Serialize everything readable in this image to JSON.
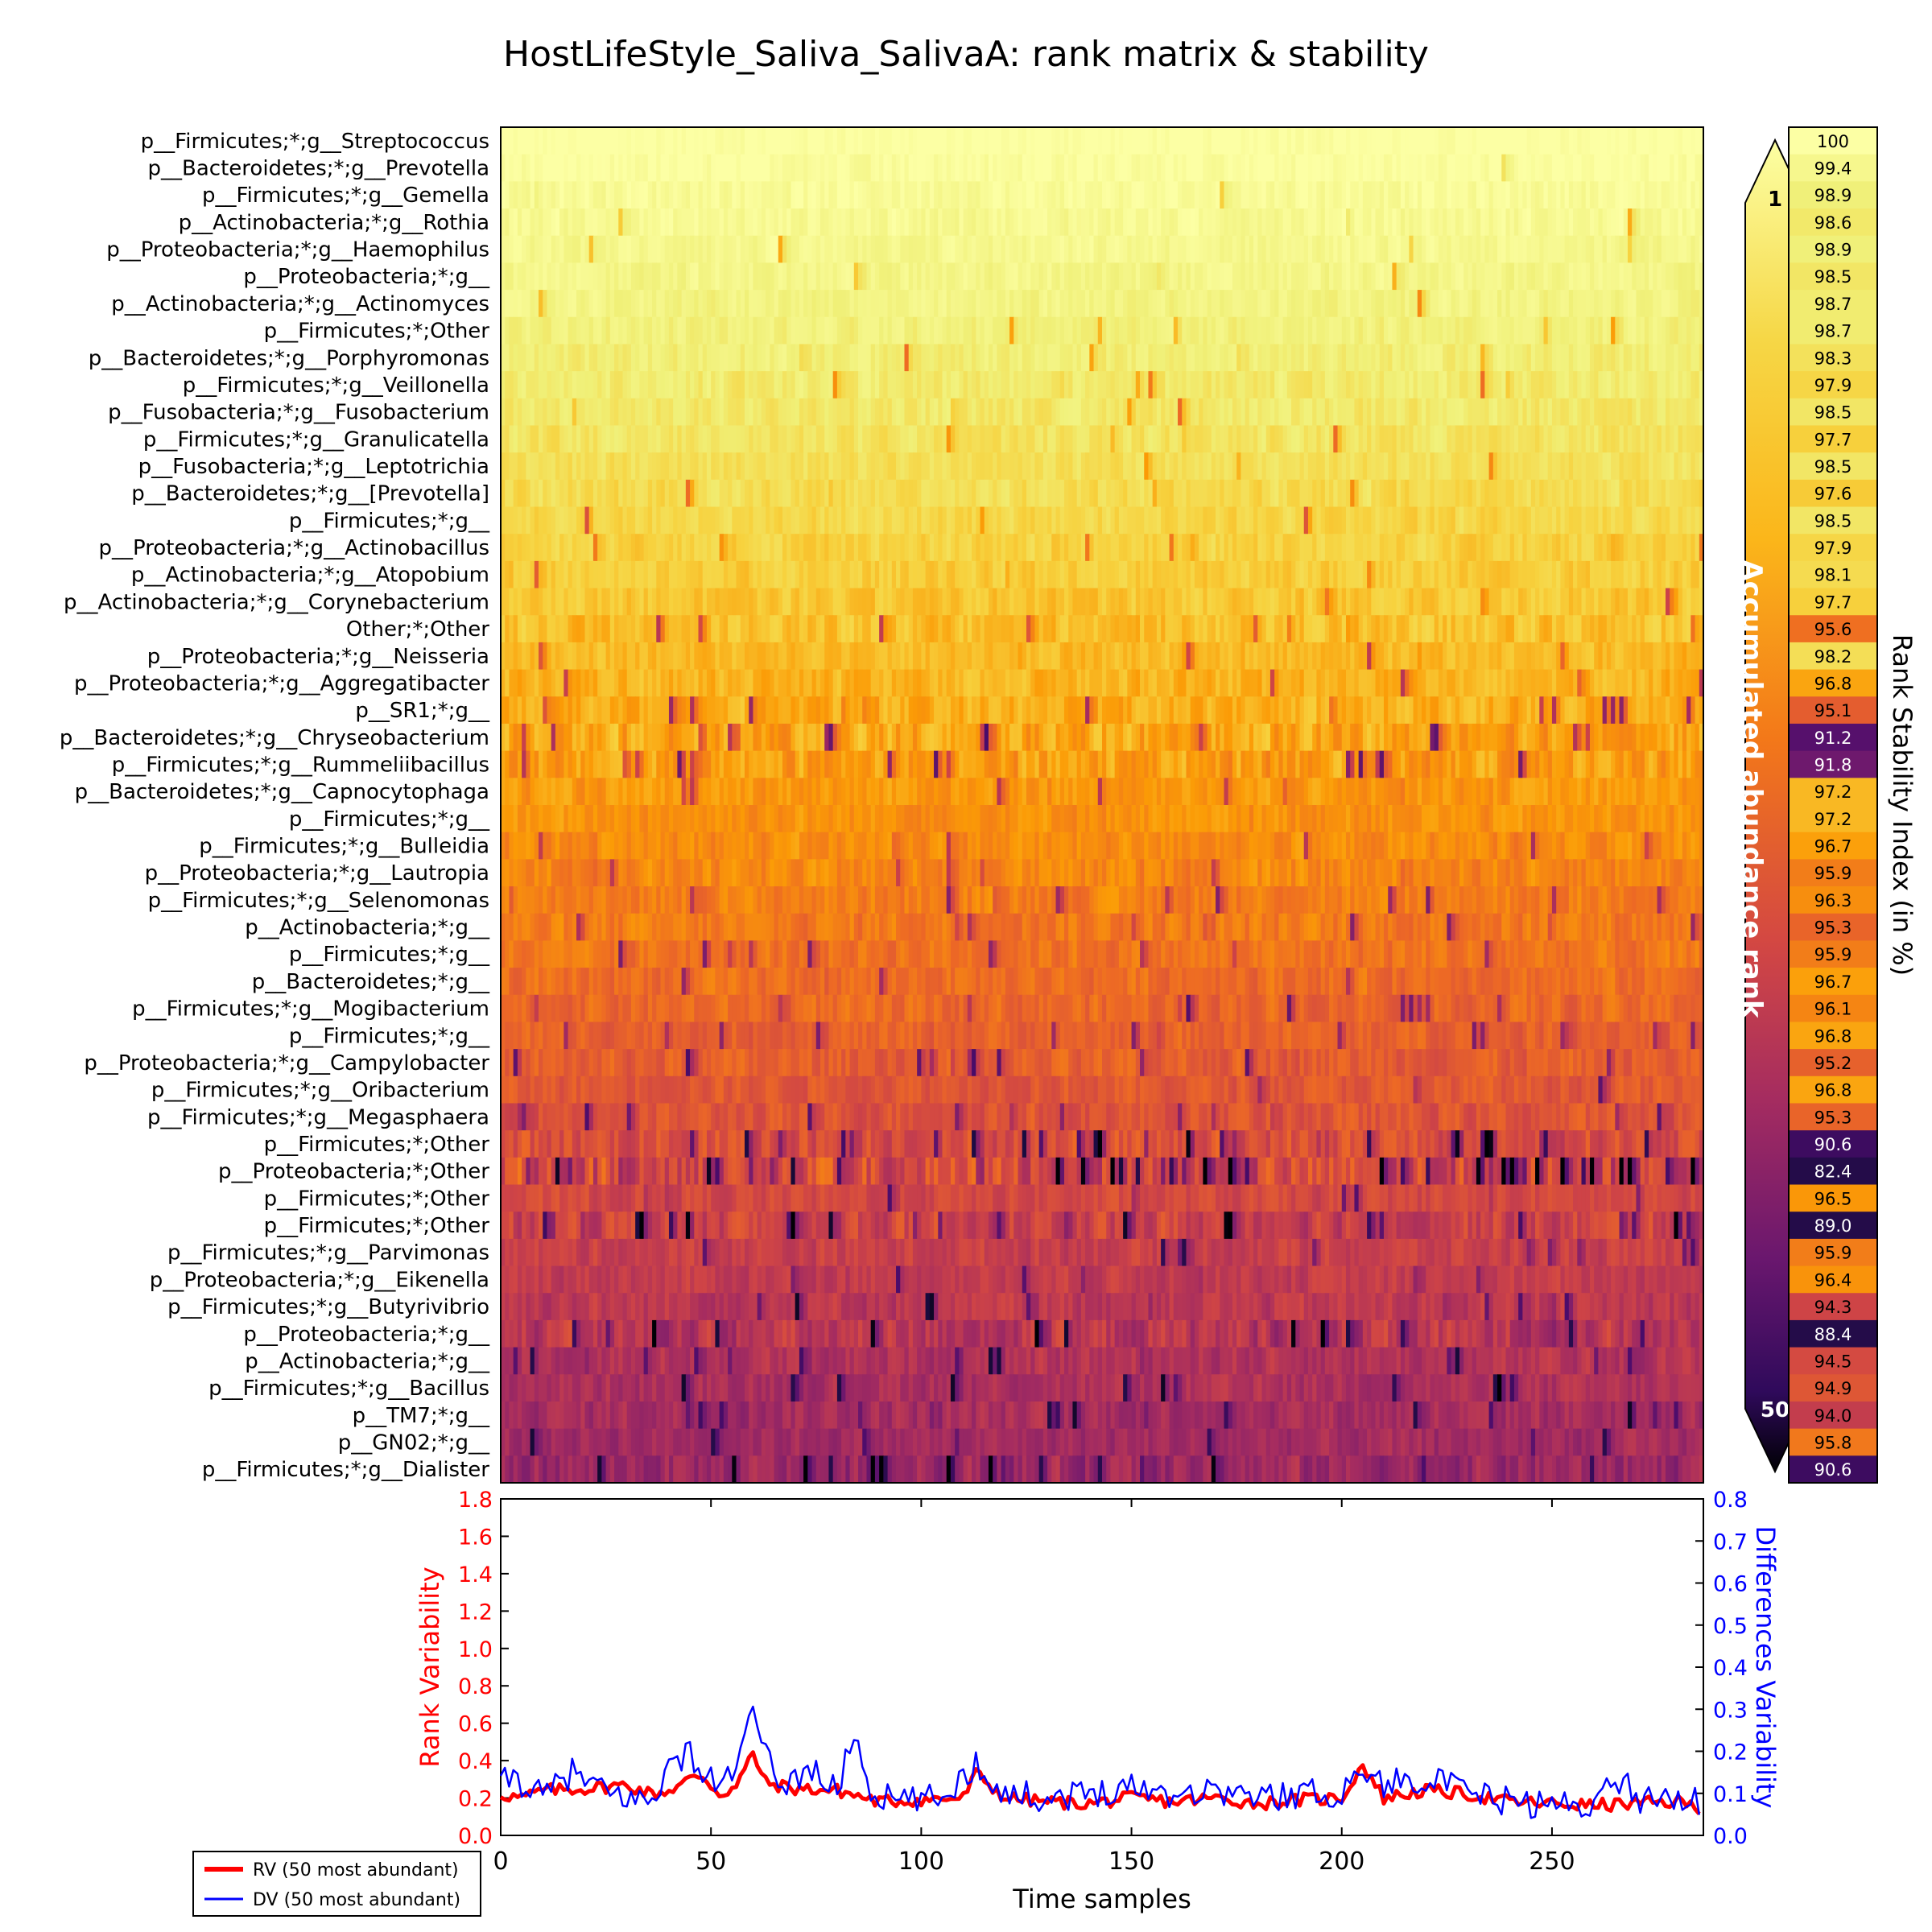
{
  "title": "HostLifeStyle_Saliva_SalivaA: rank matrix & stability",
  "chart_data": [
    {
      "type": "heatmap",
      "name": "rank-matrix",
      "rows": [
        "p__Firmicutes;*;g__Streptococcus",
        "p__Bacteroidetes;*;g__Prevotella",
        "p__Firmicutes;*;g__Gemella",
        "p__Actinobacteria;*;g__Rothia",
        "p__Proteobacteria;*;g__Haemophilus",
        "p__Proteobacteria;*;g__",
        "p__Actinobacteria;*;g__Actinomyces",
        "p__Firmicutes;*;Other",
        "p__Bacteroidetes;*;g__Porphyromonas",
        "p__Firmicutes;*;g__Veillonella",
        "p__Fusobacteria;*;g__Fusobacterium",
        "p__Firmicutes;*;g__Granulicatella",
        "p__Fusobacteria;*;g__Leptotrichia",
        "p__Bacteroidetes;*;g__[Prevotella]",
        "p__Firmicutes;*;g__",
        "p__Proteobacteria;*;g__Actinobacillus",
        "p__Actinobacteria;*;g__Atopobium",
        "p__Actinobacteria;*;g__Corynebacterium",
        "Other;*;Other",
        "p__Proteobacteria;*;g__Neisseria",
        "p__Proteobacteria;*;g__Aggregatibacter",
        "p__SR1;*;g__",
        "p__Bacteroidetes;*;g__Chryseobacterium",
        "p__Firmicutes;*;g__Rummeliibacillus",
        "p__Bacteroidetes;*;g__Capnocytophaga",
        "p__Firmicutes;*;g__",
        "p__Firmicutes;*;g__Bulleidia",
        "p__Proteobacteria;*;g__Lautropia",
        "p__Firmicutes;*;g__Selenomonas",
        "p__Actinobacteria;*;g__",
        "p__Firmicutes;*;g__",
        "p__Bacteroidetes;*;g__",
        "p__Firmicutes;*;g__Mogibacterium",
        "p__Firmicutes;*;g__",
        "p__Proteobacteria;*;g__Campylobacter",
        "p__Firmicutes;*;g__Oribacterium",
        "p__Firmicutes;*;g__Megasphaera",
        "p__Firmicutes;*;Other",
        "p__Proteobacteria;*;Other",
        "p__Firmicutes;*;Other",
        "p__Firmicutes;*;Other",
        "p__Firmicutes;*;g__Parvimonas",
        "p__Proteobacteria;*;g__Eikenella",
        "p__Firmicutes;*;g__Butyrivibrio",
        "p__Proteobacteria;*;g__",
        "p__Actinobacteria;*;g__",
        "p__Firmicutes;*;g__Bacillus",
        "p__TM7;*;g__",
        "p__GN02;*;g__",
        "p__Firmicutes;*;g__Dialister"
      ],
      "stability": [
        100,
        99.4,
        98.9,
        98.6,
        98.9,
        98.5,
        98.7,
        98.7,
        98.3,
        97.9,
        98.5,
        97.7,
        98.5,
        97.6,
        98.5,
        97.9,
        98.1,
        97.7,
        95.6,
        98.2,
        96.8,
        95.1,
        91.2,
        91.8,
        97.2,
        97.2,
        96.7,
        95.9,
        96.3,
        95.3,
        95.9,
        96.7,
        96.1,
        96.8,
        95.2,
        96.8,
        95.3,
        90.6,
        82.4,
        96.5,
        89.0,
        95.9,
        96.4,
        94.3,
        88.4,
        94.5,
        94.9,
        94.0,
        95.8,
        90.6
      ],
      "stability_labels": [
        "100",
        "99.4",
        "98.9",
        "98.6",
        "98.9",
        "98.5",
        "98.7",
        "98.7",
        "98.3",
        "97.9",
        "98.5",
        "97.7",
        "98.5",
        "97.6",
        "98.5",
        "97.9",
        "98.1",
        "97.7",
        "95.6",
        "98.2",
        "96.8",
        "95.1",
        "91.2",
        "91.8",
        "97.2",
        "97.2",
        "96.7",
        "95.9",
        "96.3",
        "95.3",
        "95.9",
        "96.7",
        "96.1",
        "96.8",
        "95.2",
        "96.8",
        "95.3",
        "90.6",
        "82.4",
        "96.5",
        "89.0",
        "95.9",
        "96.4",
        "94.3",
        "88.4",
        "94.5",
        "94.9",
        "94.0",
        "95.8",
        "90.6"
      ],
      "n_samples": 286,
      "colormap": "inferno",
      "colorbar_label": "Accumulated abundance rank",
      "colorbar_min_label": "1",
      "colorbar_max_label": "50",
      "colorbar_range": [
        1,
        50
      ],
      "stability_axis_label": "Rank Stability Index (in %)"
    },
    {
      "type": "line",
      "name": "variability",
      "xlabel": "Time samples",
      "ylabel_left": "Rank Variability",
      "ylabel_right": "Differences Variability",
      "xlim": [
        0,
        286
      ],
      "ylim_left": [
        0,
        1.8
      ],
      "ylim_right": [
        0,
        0.8
      ],
      "x_ticks": [
        "0",
        "50",
        "100",
        "150",
        "200",
        "250"
      ],
      "y_left_ticks": [
        "0.0",
        "0.2",
        "0.4",
        "0.6",
        "0.8",
        "1.0",
        "1.2",
        "1.4",
        "1.6",
        "1.8"
      ],
      "y_right_ticks": [
        "0.0",
        "0.1",
        "0.2",
        "0.3",
        "0.4",
        "0.5",
        "0.6",
        "0.7",
        "0.8"
      ],
      "series": [
        {
          "name": "RV (50 most abundant)",
          "color": "#ff0000",
          "axis": "left",
          "keypoints_x": [
            0,
            5,
            10,
            20,
            30,
            36,
            40,
            45,
            48,
            52,
            56,
            60,
            63,
            70,
            80,
            90,
            100,
            110,
            113,
            120,
            130,
            140,
            150,
            160,
            170,
            180,
            190,
            200,
            205,
            210,
            220,
            230,
            240,
            250,
            260,
            270,
            280,
            285
          ],
          "keypoints_y": [
            0.22,
            0.2,
            0.24,
            0.25,
            0.27,
            0.22,
            0.24,
            0.3,
            0.32,
            0.22,
            0.26,
            0.44,
            0.28,
            0.25,
            0.24,
            0.18,
            0.19,
            0.2,
            0.33,
            0.2,
            0.18,
            0.17,
            0.2,
            0.18,
            0.2,
            0.17,
            0.19,
            0.2,
            0.38,
            0.2,
            0.24,
            0.22,
            0.18,
            0.17,
            0.16,
            0.17,
            0.18,
            0.15
          ]
        },
        {
          "name": "DV (50 most abundant)",
          "color": "#0000ff",
          "axis": "right",
          "keypoints_x": [
            0,
            3,
            10,
            17,
            25,
            35,
            40,
            45,
            48,
            52,
            57,
            60,
            62,
            67,
            74,
            80,
            84,
            88,
            95,
            105,
            113,
            120,
            130,
            140,
            150,
            160,
            170,
            180,
            190,
            200,
            205,
            210,
            220,
            230,
            240,
            250,
            260,
            267,
            270,
            275,
            280,
            285
          ],
          "keypoints_y": [
            0.12,
            0.14,
            0.09,
            0.15,
            0.1,
            0.08,
            0.16,
            0.2,
            0.14,
            0.12,
            0.18,
            0.31,
            0.2,
            0.12,
            0.16,
            0.1,
            0.25,
            0.1,
            0.08,
            0.09,
            0.17,
            0.1,
            0.09,
            0.1,
            0.12,
            0.1,
            0.11,
            0.09,
            0.1,
            0.1,
            0.16,
            0.12,
            0.14,
            0.1,
            0.08,
            0.07,
            0.08,
            0.14,
            0.08,
            0.1,
            0.09,
            0.08
          ]
        }
      ],
      "legend_position": "bottom-left"
    }
  ]
}
